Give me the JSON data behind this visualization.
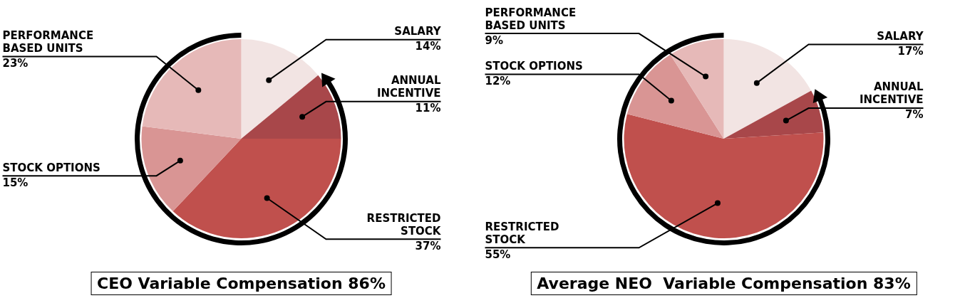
{
  "chart_data": [
    {
      "type": "pie",
      "title": "CEO Variable Compensation 86%",
      "categories": [
        "SALARY",
        "ANNUAL INCENTIVE",
        "RESTRICTED STOCK",
        "STOCK OPTIONS",
        "PERFORMANCE BASED UNITS"
      ],
      "values": [
        14,
        11,
        37,
        15,
        23
      ],
      "value_labels": [
        "14%",
        "11%",
        "37%",
        "15%",
        "23%"
      ],
      "data_labels": true,
      "colors": [
        "#f2e4e3",
        "#a8474a",
        "#c0504d",
        "#d99594",
        "#e6b9b8"
      ],
      "legend": false
    },
    {
      "type": "pie",
      "title": "Average NEO  Variable Compensation 83%",
      "categories": [
        "SALARY",
        "ANNUAL INCENTIVE",
        "RESTRICTED STOCK",
        "STOCK OPTIONS",
        "PERFORMANCE BASED UNITS"
      ],
      "values": [
        17,
        7,
        55,
        12,
        9
      ],
      "value_labels": [
        "17%",
        "7%",
        "55%",
        "12%",
        "9%"
      ],
      "data_labels": true,
      "colors": [
        "#f2e4e3",
        "#a8474a",
        "#c0504d",
        "#d99594",
        "#e6b9b8"
      ],
      "legend": false
    }
  ]
}
